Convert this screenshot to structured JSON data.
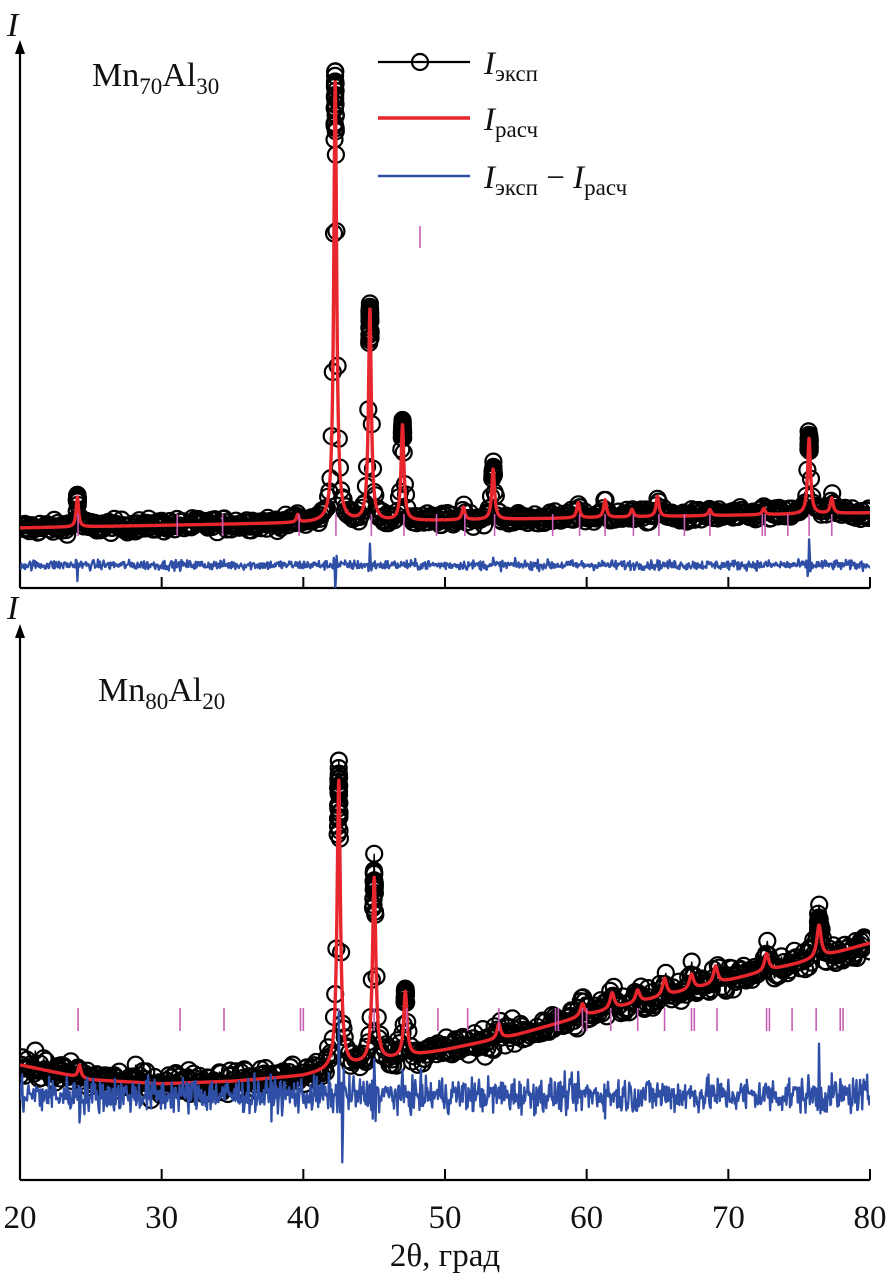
{
  "chart_data": {
    "type": "line",
    "xlabel": "2θ, град",
    "x_ticks": [
      20,
      30,
      40,
      50,
      60,
      70,
      80
    ],
    "xlim": [
      20,
      80
    ],
    "legend": [
      {
        "name": "I_эксп",
        "main": "I",
        "sub": "эксп",
        "style": "open circles with black line"
      },
      {
        "name": "I_расч",
        "main": "I",
        "sub": "расч",
        "style": "red line"
      },
      {
        "name": "I_эксп − I_расч",
        "main": "I",
        "sub": "эксп",
        "minus": " − ",
        "main2": "I",
        "sub2": "расч",
        "style": "blue line"
      }
    ],
    "colors": {
      "experimental": "#000000",
      "calculated": "#e8262d",
      "difference": "#2f4fa6",
      "bragg": "#c75fb6"
    },
    "panels": [
      {
        "sample_main": "Mn",
        "sample_sub1": "70",
        "sample_el2": "Al",
        "sample_sub2": "30",
        "ylabel": "I",
        "ylim": [
          0,
          100
        ],
        "background": {
          "start": 4.0,
          "end": 7.0
        },
        "noise": 0.9,
        "peaks": [
          {
            "x": 24.05,
            "h": 6,
            "w": 0.1
          },
          {
            "x": 39.6,
            "h": 1.5,
            "w": 0.1
          },
          {
            "x": 42.25,
            "h": 88,
            "w": 0.12
          },
          {
            "x": 44.7,
            "h": 42,
            "w": 0.12
          },
          {
            "x": 47.0,
            "h": 19,
            "w": 0.12
          },
          {
            "x": 51.3,
            "h": 2.5,
            "w": 0.12
          },
          {
            "x": 53.4,
            "h": 10,
            "w": 0.12
          },
          {
            "x": 59.4,
            "h": 3,
            "w": 0.12
          },
          {
            "x": 61.3,
            "h": 3.5,
            "w": 0.12
          },
          {
            "x": 63.2,
            "h": 1.5,
            "w": 0.12
          },
          {
            "x": 65.0,
            "h": 4,
            "w": 0.12
          },
          {
            "x": 68.7,
            "h": 1.2,
            "w": 0.12
          },
          {
            "x": 72.5,
            "h": 1.2,
            "w": 0.12
          },
          {
            "x": 75.7,
            "h": 15,
            "w": 0.12
          },
          {
            "x": 77.3,
            "h": 3,
            "w": 0.12
          }
        ],
        "misfit": [
          {
            "x": 24.05,
            "d": -1.3
          },
          {
            "x": 42.25,
            "d": -3.0
          },
          {
            "x": 44.7,
            "d": 2.5
          },
          {
            "x": 53.4,
            "d": 0.8
          },
          {
            "x": 75.7,
            "d": 2.8
          }
        ],
        "misfit_scale": 0.7,
        "bragg_positions": [
          24.1,
          31.1,
          34.3,
          39.7,
          42.3,
          44.8,
          47.1,
          49.4,
          51.4,
          53.5,
          57.6,
          59.5,
          61.3,
          63.3,
          65.1,
          66.9,
          68.7,
          72.4,
          72.6,
          74.2,
          75.7,
          77.3
        ]
      },
      {
        "sample_main": "Mn",
        "sample_sub1": "80",
        "sample_el2": "Al",
        "sample_sub2": "20",
        "ylabel": "I",
        "ylim": [
          0,
          100
        ],
        "background": {
          "curve": [
            [
              20,
              13.5
            ],
            [
              25,
              10.5
            ],
            [
              30,
              9.7
            ],
            [
              35,
              10.2
            ],
            [
              40,
              11.3
            ],
            [
              45,
              14
            ],
            [
              50,
              16.5
            ],
            [
              55,
              19.5
            ],
            [
              60,
              23.5
            ],
            [
              65,
              27
            ],
            [
              70,
              30.5
            ],
            [
              75,
              34
            ],
            [
              80,
              38
            ]
          ]
        },
        "noise": 1.8,
        "peaks": [
          {
            "x": 24.2,
            "h": 2.5,
            "w": 0.12
          },
          {
            "x": 42.5,
            "h": 58,
            "w": 0.14
          },
          {
            "x": 45.0,
            "h": 37,
            "w": 0.14
          },
          {
            "x": 47.2,
            "h": 13,
            "w": 0.14
          },
          {
            "x": 53.8,
            "h": 3,
            "w": 0.15
          },
          {
            "x": 59.7,
            "h": 2.5,
            "w": 0.18
          },
          {
            "x": 61.8,
            "h": 3.2,
            "w": 0.18
          },
          {
            "x": 63.6,
            "h": 2.5,
            "w": 0.18
          },
          {
            "x": 65.5,
            "h": 3.5,
            "w": 0.18
          },
          {
            "x": 67.4,
            "h": 3,
            "w": 0.18
          },
          {
            "x": 69.1,
            "h": 3.5,
            "w": 0.18
          },
          {
            "x": 72.7,
            "h": 3.5,
            "w": 0.18
          },
          {
            "x": 76.4,
            "h": 6.5,
            "w": 0.18
          }
        ],
        "misfit": [
          {
            "x": 24.2,
            "d": -1.5
          },
          {
            "x": 42.5,
            "d": 5.0
          },
          {
            "x": 42.75,
            "d": -4.2
          },
          {
            "x": 45.0,
            "d": 3.5
          },
          {
            "x": 76.4,
            "d": 3.5
          }
        ],
        "misfit_scale": 1.3,
        "bragg_positions": [
          24.1,
          31.3,
          34.4,
          39.8,
          40.0,
          42.5,
          45.0,
          47.3,
          49.5,
          51.6,
          53.8,
          57.8,
          58.0,
          59.7,
          60.0,
          61.7,
          63.6,
          65.5,
          67.4,
          67.6,
          69.2,
          72.7,
          72.9,
          74.5,
          76.2,
          77.9,
          78.1
        ]
      }
    ]
  }
}
